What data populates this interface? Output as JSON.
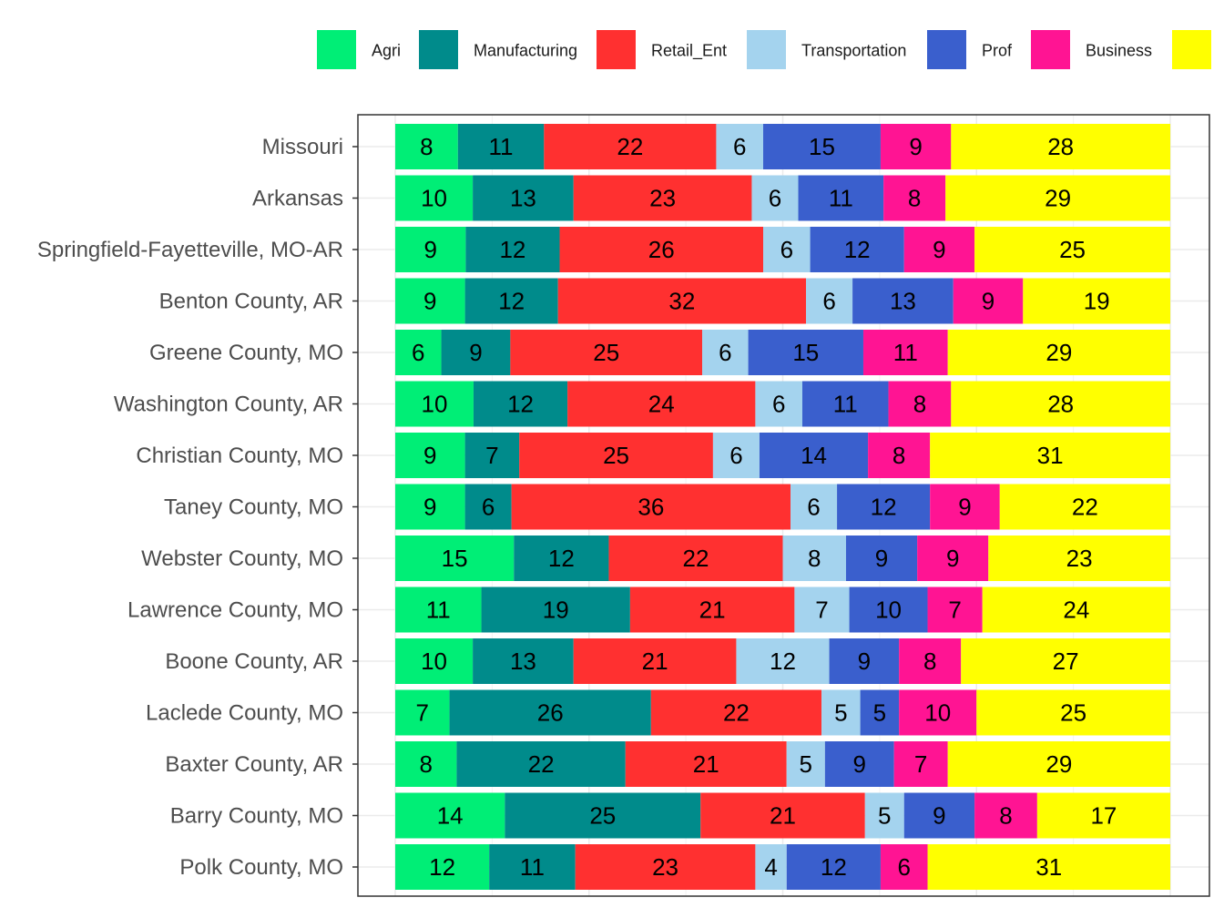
{
  "chart_data": {
    "type": "bar",
    "orientation": "horizontal",
    "stacked": true,
    "normalized": true,
    "title": "",
    "xlabel": "",
    "ylabel": "",
    "xlim": [
      0,
      100
    ],
    "grid": true,
    "legend_position": "top",
    "categories": [
      "Missouri",
      "Arkansas",
      "Springfield-Fayetteville, MO-AR",
      "Benton County, AR",
      "Greene County, MO",
      "Washington County, AR",
      "Christian County, MO",
      "Taney County, MO",
      "Webster County, MO",
      "Lawrence County, MO",
      "Boone County, AR",
      "Laclede County, MO",
      "Baxter County, AR",
      "Barry County, MO",
      "Polk County, MO"
    ],
    "series": [
      {
        "name": "Agri",
        "color": "#00EE76",
        "values": [
          8,
          10,
          9,
          9,
          6,
          10,
          9,
          9,
          15,
          11,
          10,
          7,
          8,
          14,
          12
        ]
      },
      {
        "name": "Manufacturing",
        "color": "#008B8B",
        "values": [
          11,
          13,
          12,
          12,
          9,
          12,
          7,
          6,
          12,
          19,
          13,
          26,
          22,
          25,
          11
        ]
      },
      {
        "name": "Retail_Ent",
        "color": "#FF3030",
        "values": [
          22,
          23,
          26,
          32,
          25,
          24,
          25,
          36,
          22,
          21,
          21,
          22,
          21,
          21,
          23
        ]
      },
      {
        "name": "Transportation",
        "color": "#A4D3EE",
        "values": [
          6,
          6,
          6,
          6,
          6,
          6,
          6,
          6,
          8,
          7,
          12,
          5,
          5,
          5,
          4
        ]
      },
      {
        "name": "Prof",
        "color": "#3A5FCD",
        "values": [
          15,
          11,
          12,
          13,
          15,
          11,
          14,
          12,
          9,
          10,
          9,
          5,
          9,
          9,
          12
        ]
      },
      {
        "name": "Business",
        "color": "#FF1493",
        "values": [
          9,
          8,
          9,
          9,
          11,
          8,
          8,
          9,
          9,
          7,
          8,
          10,
          7,
          8,
          6
        ]
      },
      {
        "name": "",
        "color": "#FFFF00",
        "values": [
          28,
          29,
          25,
          19,
          29,
          28,
          31,
          22,
          23,
          24,
          27,
          25,
          29,
          17,
          31
        ]
      }
    ]
  }
}
